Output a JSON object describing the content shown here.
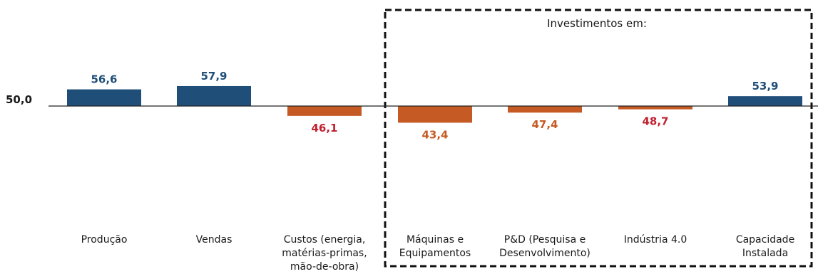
{
  "chart_data": {
    "type": "bar",
    "baseline": 50.0,
    "baseline_label": "50,0",
    "group_title": "Investimentos em:",
    "colors": {
      "positive_bar": "#1f4e79",
      "negative_bar": "#c55a24",
      "positive_label": "#1f4e79",
      "label_red": "#c0202f",
      "label_orange": "#c55a24"
    },
    "categories": [
      {
        "label_lines": [
          "Produção"
        ],
        "value": 56.6,
        "value_label": "56,6",
        "label_color": "positive_label"
      },
      {
        "label_lines": [
          "Vendas"
        ],
        "value": 57.9,
        "value_label": "57,9",
        "label_color": "positive_label"
      },
      {
        "label_lines": [
          "Custos (energia,",
          "matérias-primas,",
          "mão-de-obra)"
        ],
        "value": 46.1,
        "value_label": "46,1",
        "label_color": "label_red"
      },
      {
        "label_lines": [
          "Máquinas e",
          "Equipamentos"
        ],
        "value": 43.4,
        "value_label": "43,4",
        "label_color": "label_orange"
      },
      {
        "label_lines": [
          "P&D (Pesquisa e",
          "Desenvolvimento)"
        ],
        "value": 47.4,
        "value_label": "47,4",
        "label_color": "label_orange"
      },
      {
        "label_lines": [
          "Indústria 4.0"
        ],
        "value": 48.7,
        "value_label": "48,7",
        "label_color": "label_red"
      },
      {
        "label_lines": [
          "Capacidade",
          "Instalada"
        ],
        "value": 53.9,
        "value_label": "53,9",
        "label_color": "positive_label"
      }
    ]
  }
}
